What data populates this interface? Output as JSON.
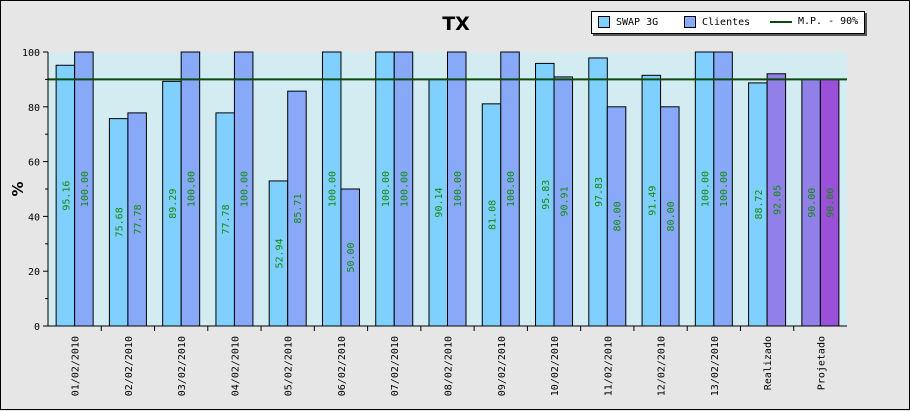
{
  "chart_data": {
    "type": "bar",
    "title": "TX",
    "xlabel": "",
    "ylabel": "%",
    "ylim": [
      0,
      100
    ],
    "yticks": [
      "0",
      "20",
      "40",
      "60",
      "80",
      "100"
    ],
    "grid": false,
    "legend_position": "top-right",
    "categories": [
      "01/02/2010",
      "02/02/2010",
      "03/02/2010",
      "04/02/2010",
      "05/02/2010",
      "06/02/2010",
      "07/02/2010",
      "08/02/2010",
      "09/02/2010",
      "10/02/2010",
      "11/02/2010",
      "12/02/2010",
      "13/02/2010",
      "Realizado",
      "Projetado"
    ],
    "series": [
      {
        "name": "SWAP 3G",
        "color": "#80d0ff",
        "values": [
          95.16,
          75.68,
          89.29,
          77.78,
          52.94,
          100.0,
          100.0,
          90.14,
          81.08,
          95.83,
          97.83,
          91.49,
          100.0,
          88.72,
          90.0
        ],
        "labels": [
          "95.16",
          "75.68",
          "89.29",
          "77.78",
          "52.94",
          "100.00",
          "100.00",
          "90.14",
          "81.08",
          "95.83",
          "97.83",
          "91.49",
          "100.00",
          "88.72",
          "90.00"
        ]
      },
      {
        "name": "Clientes",
        "color": "#88a8f8",
        "values": [
          100.0,
          77.78,
          100.0,
          100.0,
          85.71,
          50.0,
          100.0,
          100.0,
          100.0,
          90.91,
          80.0,
          80.0,
          100.0,
          92.05,
          90.0
        ],
        "labels": [
          "100.00",
          "77.78",
          "100.00",
          "100.00",
          "85.71",
          "50.00",
          "100.00",
          "100.00",
          "100.00",
          "90.91",
          "80.00",
          "80.00",
          "100.00",
          "92.05",
          "90.00"
        ]
      }
    ],
    "special_bar_colors": {
      "Realizado": [
        "#80d0ff",
        "#9080e8"
      ],
      "Projetado": [
        "#9080e8",
        "#9a50d8"
      ]
    },
    "reference_line": {
      "name": "M.P. - 90%",
      "value": 90,
      "color": "#0b4a0b"
    },
    "plot_background": "#d2ecf2",
    "label_color": "#128a12"
  }
}
